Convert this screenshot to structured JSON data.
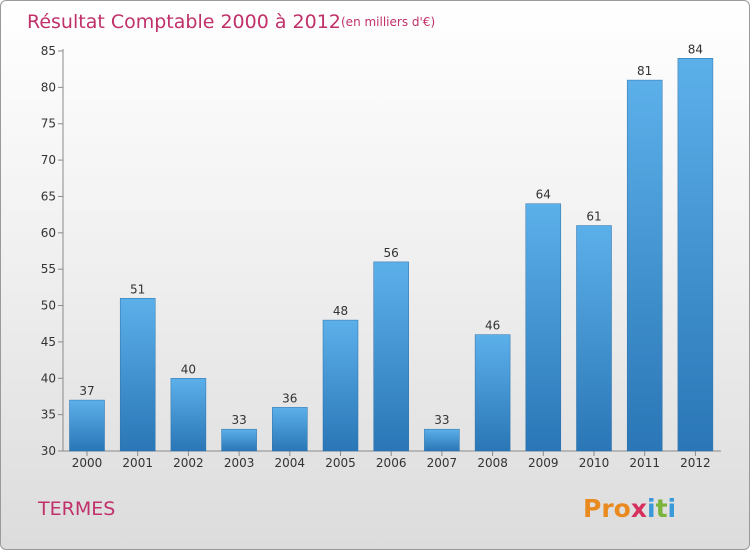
{
  "chart_data": {
    "type": "bar",
    "title": "Résultat Comptable 2000 à 2012",
    "subtitle": "(en milliers d'€)",
    "xlabel": "",
    "ylabel": "",
    "categories": [
      "2000",
      "2001",
      "2002",
      "2003",
      "2004",
      "2005",
      "2006",
      "2007",
      "2008",
      "2009",
      "2010",
      "2011",
      "2012"
    ],
    "values": [
      37,
      51,
      40,
      33,
      36,
      48,
      56,
      33,
      46,
      64,
      61,
      81,
      84
    ],
    "ylim": [
      30,
      85
    ],
    "yticks": [
      30,
      35,
      40,
      45,
      50,
      55,
      60,
      65,
      70,
      75,
      80,
      85
    ],
    "grid": false,
    "bar_color": "#3a8fd0"
  },
  "footer": {
    "commune": "TERMES",
    "logo": {
      "letters": [
        "P",
        "r",
        "o",
        "x",
        "i",
        "t",
        "i"
      ],
      "colors": [
        "#e88a1e",
        "#e88a1e",
        "#e88a1e",
        "#d6305f",
        "#3a9ad9",
        "#7bb43b",
        "#3a9ad9"
      ]
    }
  },
  "colors": {
    "title": "#c0306a",
    "bar_light": "#5aaee8",
    "bar_dark": "#2a78b8"
  }
}
